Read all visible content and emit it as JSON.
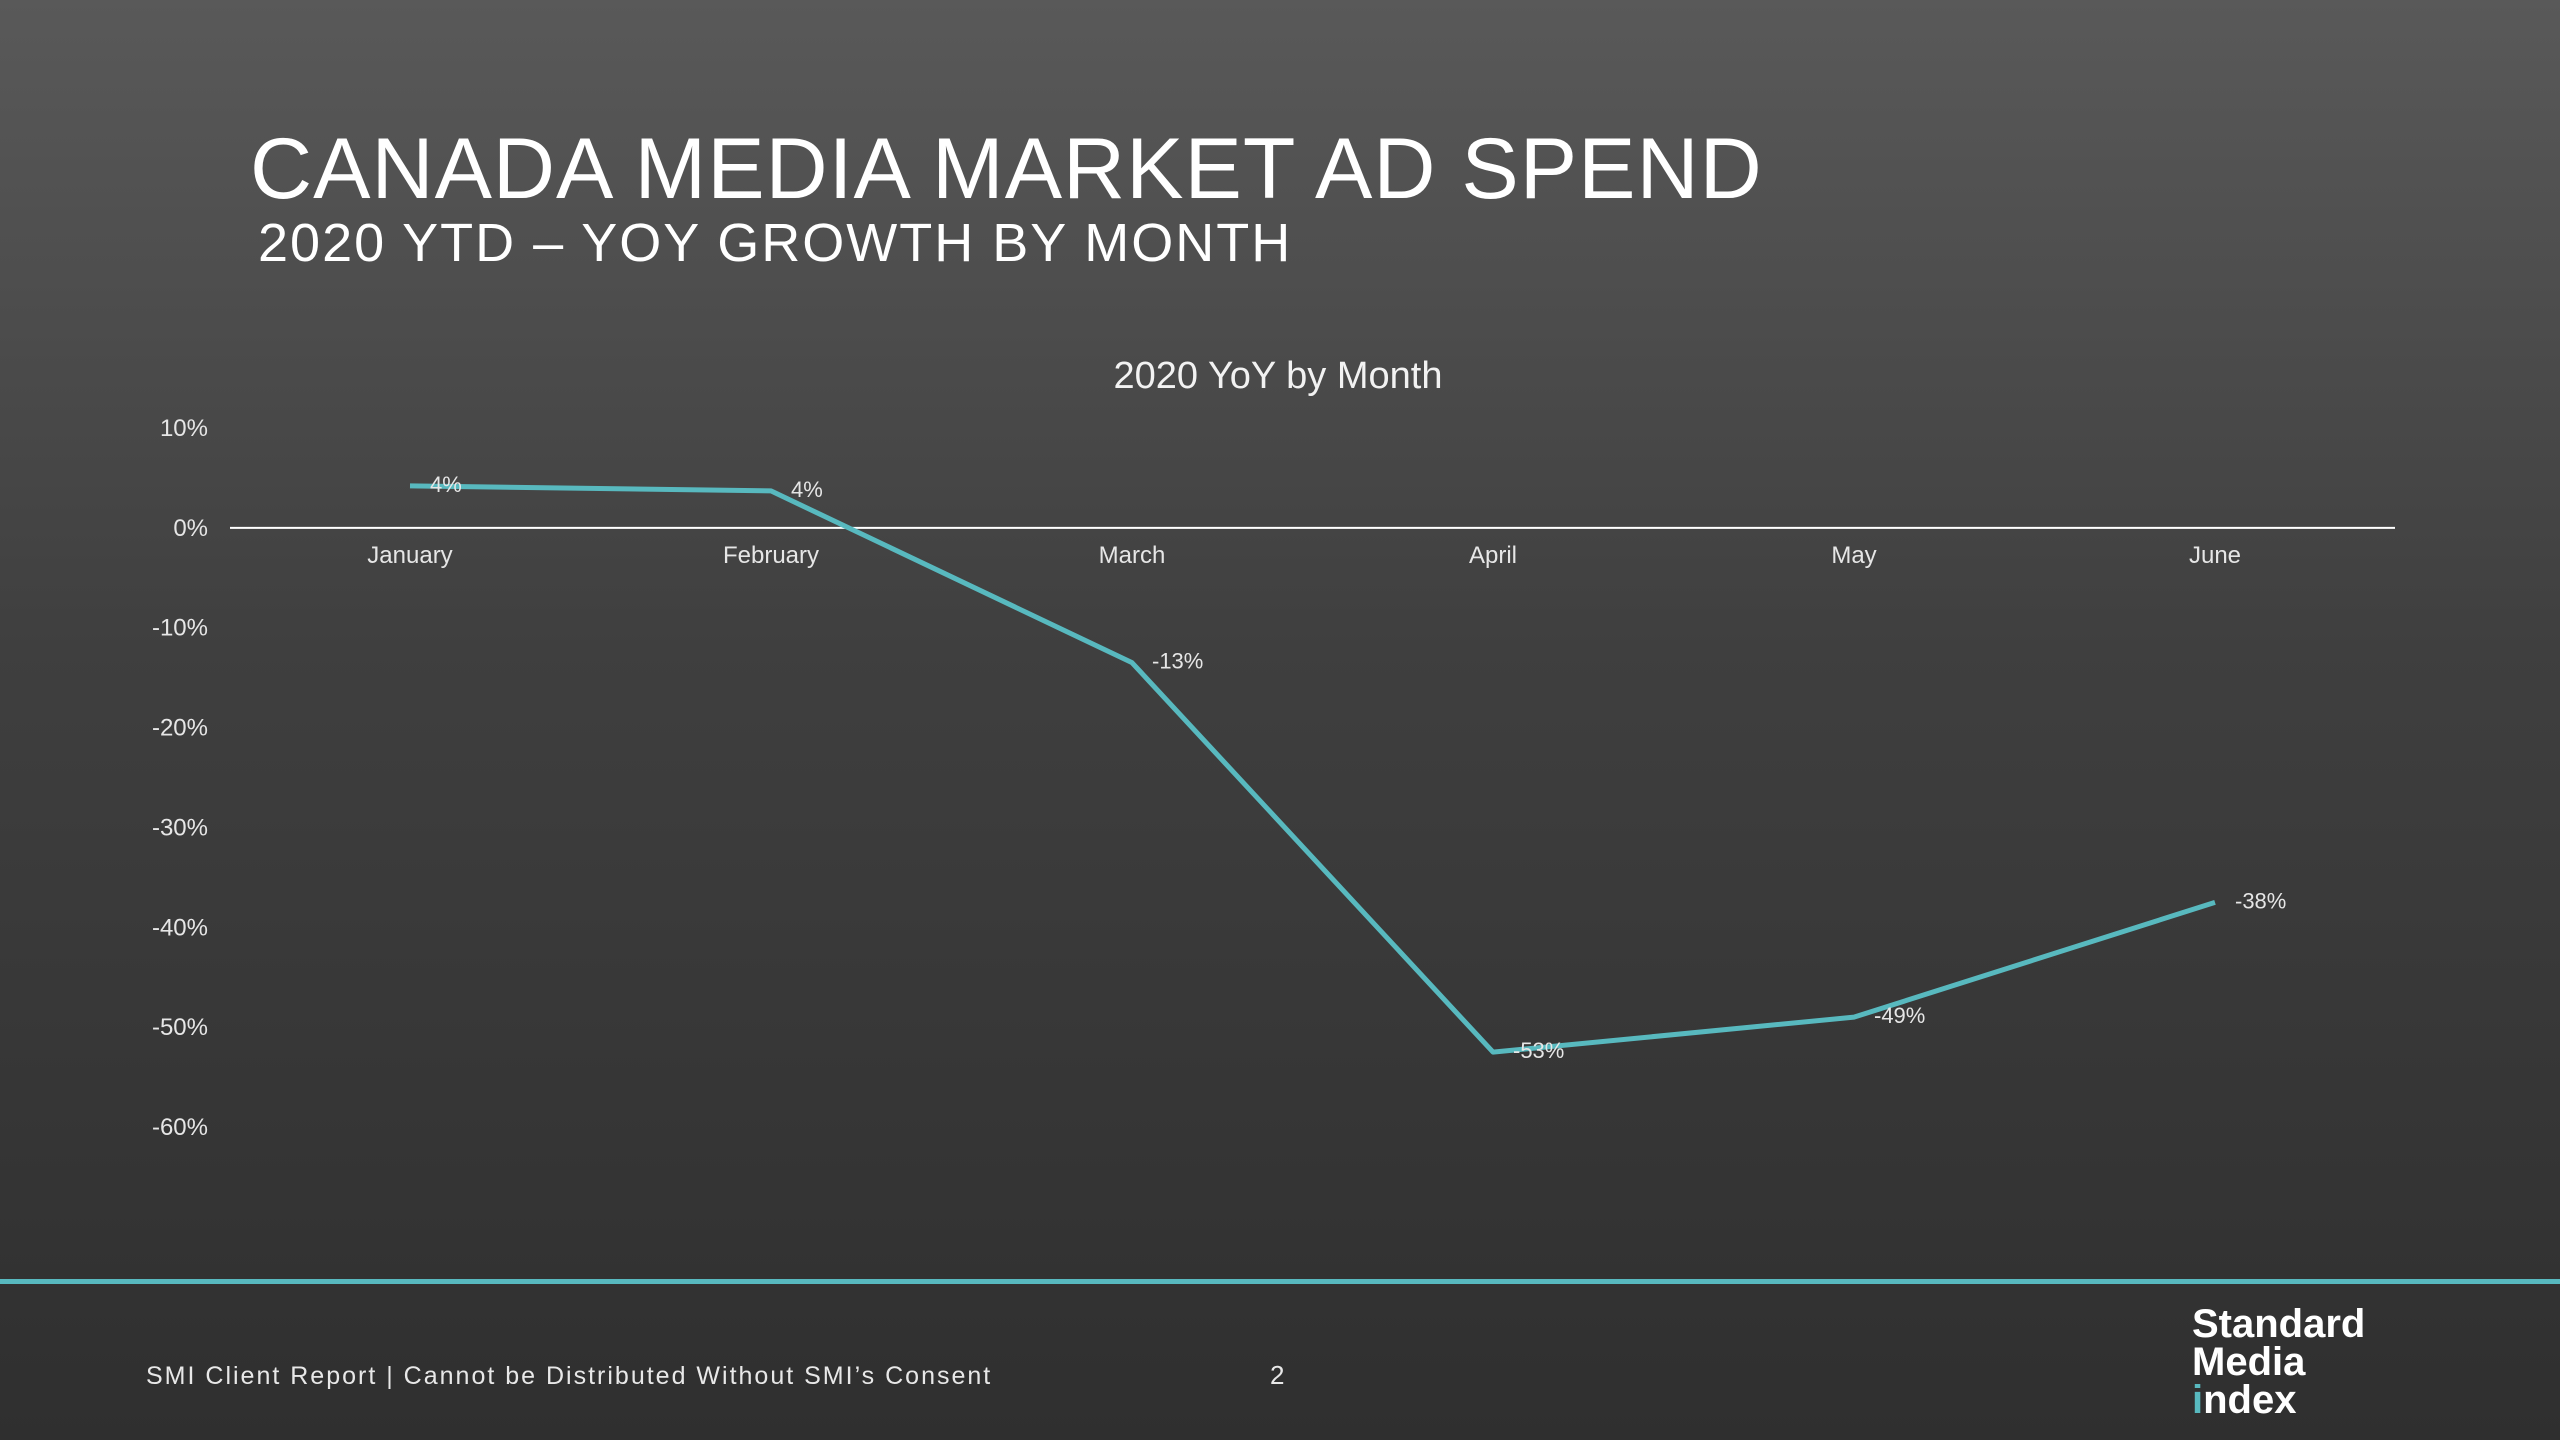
{
  "slide": {
    "title": "CANADA MEDIA MARKET AD SPEND",
    "subtitle": "2020 YTD – YOY GROWTH BY MONTH"
  },
  "chart_data": {
    "type": "line",
    "title": "2020 YoY by Month",
    "categories": [
      "January",
      "February",
      "March",
      "April",
      "May",
      "June"
    ],
    "series": [
      {
        "name": "2020 YoY",
        "values": [
          4,
          4,
          -13,
          -53,
          -49,
          -38
        ],
        "labels": [
          "4%",
          "4%",
          "-13%",
          "-53%",
          "-49%",
          "-38%"
        ],
        "color": "#58b9bf"
      }
    ],
    "plot_values": [
      4.2,
      3.7,
      -13.5,
      -52.5,
      -49,
      -37.5
    ],
    "ylim": [
      -60,
      10
    ],
    "yticks": [
      10,
      0,
      -10,
      -20,
      -30,
      -40,
      -50,
      -60
    ],
    "ytick_labels": [
      "10%",
      "0%",
      "-10%",
      "-20%",
      "-30%",
      "-40%",
      "-50%",
      "-60%"
    ],
    "grid": false,
    "legend": "none"
  },
  "footer": {
    "disclaimer": "SMI Client Report | Cannot be Distributed Without SMI’s Consent",
    "page_number": "2"
  },
  "logo": {
    "line1": "Standard",
    "line2": "Media",
    "line3_dot": "i",
    "line3_rest": "ndex",
    "accent_color": "#58b9bf"
  },
  "colors": {
    "accent": "#58b9bf",
    "axis": "#ffffff"
  }
}
